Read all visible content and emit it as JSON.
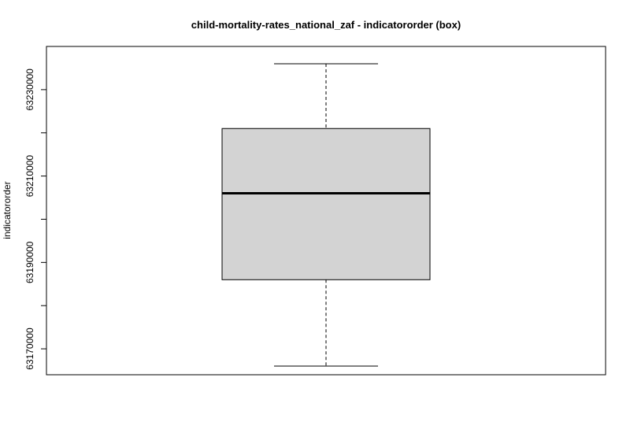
{
  "chart_data": {
    "type": "box",
    "title": "child-mortality-rates_national_zaf - indicatororder (box)",
    "xlabel": "",
    "ylabel": "indicatororder",
    "ylim": [
      63164000,
      63240000
    ],
    "y_ticks": [
      63170000,
      63180000,
      63190000,
      63200000,
      63210000,
      63220000,
      63230000
    ],
    "y_tick_labels": [
      "63170000",
      "",
      "63190000",
      "",
      "63210000",
      "",
      "63230000"
    ],
    "box": {
      "whisker_low": 63166000,
      "q1": 63186000,
      "median": 63206000,
      "q3": 63221000,
      "whisker_high": 63236000
    },
    "grid": false,
    "legend": "none",
    "colors": {
      "box_fill": "#d3d3d3",
      "stroke": "#000000"
    }
  }
}
